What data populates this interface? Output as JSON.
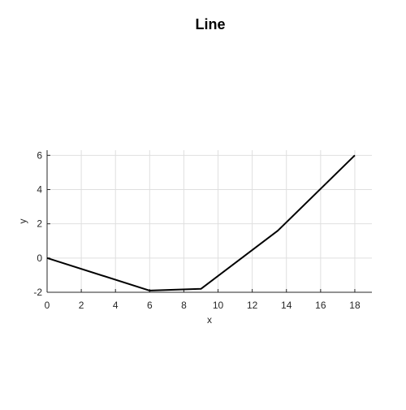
{
  "chart_data": {
    "type": "line",
    "title": "Line",
    "xlabel": "x",
    "ylabel": "y",
    "xlim": [
      0,
      19
    ],
    "ylim": [
      -2,
      6.3
    ],
    "xticks": [
      0,
      2,
      4,
      6,
      8,
      10,
      12,
      14,
      16,
      18
    ],
    "xtick_labels": [
      "0",
      "2",
      "4",
      "6",
      "8",
      "10",
      "12",
      "14",
      "16",
      "18"
    ],
    "yticks": [
      -2,
      0,
      2,
      4,
      6
    ],
    "ytick_labels": [
      "-2",
      "0",
      "2",
      "4",
      "6"
    ],
    "grid": true,
    "series": [
      {
        "x": [
          0,
          6,
          9,
          13.5,
          18
        ],
        "y": [
          0,
          -1.9,
          -1.8,
          1.6,
          6
        ],
        "color": "#000000"
      }
    ]
  }
}
